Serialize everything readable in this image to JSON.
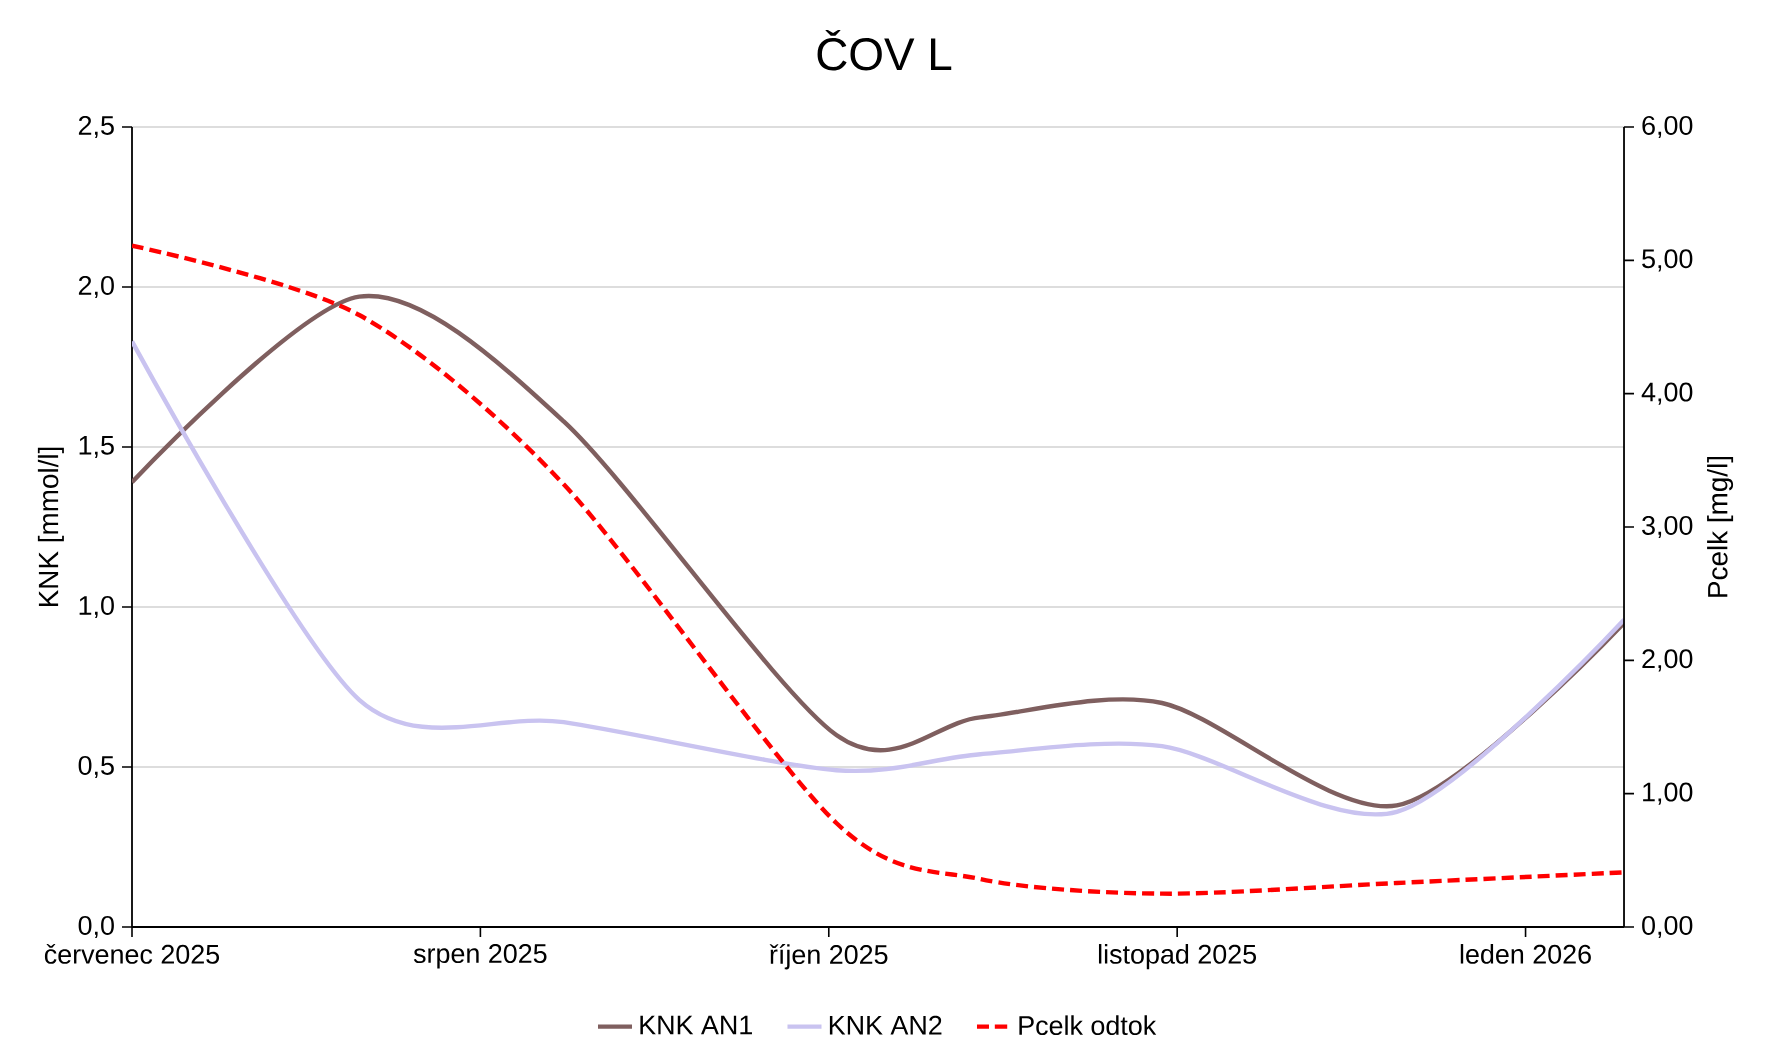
{
  "chart_data": {
    "type": "line",
    "title": "ČOV L",
    "ylabel": "KNK [mmol/l]",
    "y2label": "Pcelk [mg/l]",
    "x": [
      "2025-07-01",
      "2025-07-31",
      "2025-08-27",
      "2025-10-02",
      "2025-10-21",
      "2025-11-14",
      "2025-12-15",
      "2026-01-14"
    ],
    "xlim": [
      "2025-07-01",
      "2026-01-14"
    ],
    "xticks": [
      {
        "value": "2025-07-01",
        "label": "červenec 2025"
      },
      {
        "value": "2025-08-16",
        "label": "srpen 2025"
      },
      {
        "value": "2025-10-01",
        "label": "říjen 2025"
      },
      {
        "value": "2025-11-16",
        "label": "listopad 2025"
      },
      {
        "value": "2026-01-01",
        "label": "leden 2026"
      }
    ],
    "ylim": [
      0,
      2.5
    ],
    "yticks": [
      {
        "value": 0,
        "label": "0,0"
      },
      {
        "value": 0.5,
        "label": "0,5"
      },
      {
        "value": 1,
        "label": "1,0"
      },
      {
        "value": 1.5,
        "label": "1,5"
      },
      {
        "value": 2,
        "label": "2,0"
      },
      {
        "value": 2.5,
        "label": "2,5"
      }
    ],
    "y2lim": [
      0,
      6
    ],
    "y2ticks": [
      {
        "value": 0,
        "label": "0,00"
      },
      {
        "value": 1,
        "label": "1,00"
      },
      {
        "value": 2,
        "label": "2,00"
      },
      {
        "value": 3,
        "label": "3,00"
      },
      {
        "value": 4,
        "label": "4,00"
      },
      {
        "value": 5,
        "label": "5,00"
      },
      {
        "value": 6,
        "label": "6,00"
      }
    ],
    "grid": "y",
    "legend": "bottom",
    "marker": "none",
    "series": [
      {
        "name": "KNK AN1",
        "color": "#7f5f5f",
        "values": [
          1.39,
          1.97,
          1.58,
          0.6,
          0.655,
          0.7,
          0.38,
          0.95
        ]
      },
      {
        "name": "KNK AN2",
        "color": "#c9c3f0",
        "values": [
          1.83,
          0.71,
          0.64,
          0.49,
          0.54,
          0.565,
          0.36,
          0.96
        ]
      },
      {
        "name": "Pcelk odtok",
        "color": "#ff0000",
        "axis": "y2",
        "line_style": "dashed",
        "values": [
          5.11,
          4.59,
          3.32,
          0.78,
          0.36,
          0.25,
          0.33,
          0.41
        ]
      }
    ]
  }
}
